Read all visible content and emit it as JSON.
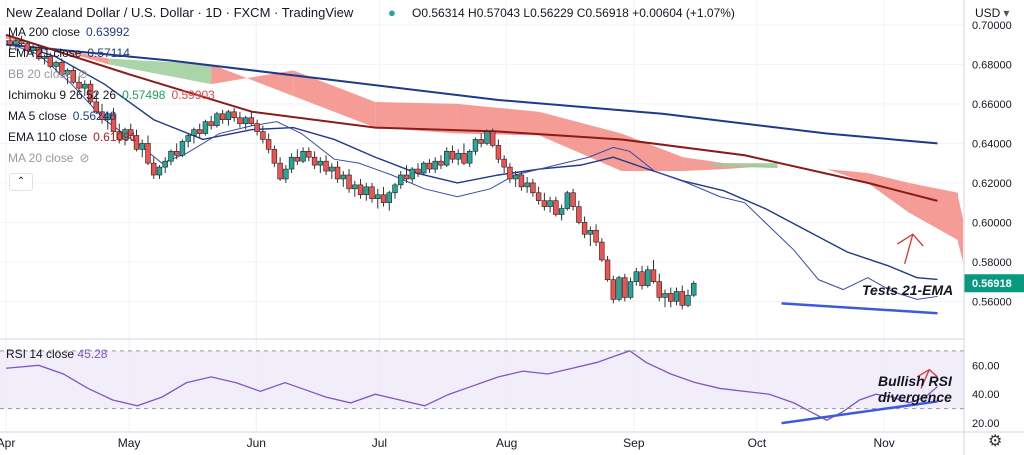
{
  "header": {
    "title": "New Zealand Dollar / U.S. Dollar · 1D · FXCM · TradingView",
    "ohlc": "O0.56314 H0.57043 L0.56229 C0.56918 +0.00604 (+1.07%)",
    "currency": "USD",
    "currency_suffix": "▾"
  },
  "indicators": [
    {
      "label": "MA 200 close",
      "value": "0.63992",
      "color": "#1e3a8a"
    },
    {
      "label": "EMA 21 close",
      "value": "0.57114",
      "color": "#1e3a8a"
    },
    {
      "label": "BB 20 close",
      "value": "",
      "color": "#9598a1"
    },
    {
      "label": "Ichimoku 9 26 52 26",
      "value": "0.57498",
      "value2": "0.59903",
      "color": "#22a15a",
      "color2": "#ef4444"
    },
    {
      "label": "MA 5 close",
      "value": "0.56246",
      "color": "#1e3a8a"
    },
    {
      "label": "EMA 110 close",
      "value": "0.61091",
      "color": "#b91c1c"
    },
    {
      "label": "MA 20 close",
      "value": "",
      "color": "#9598a1"
    }
  ],
  "rsi_label": {
    "label": "RSI 14 close",
    "value": "45.28"
  },
  "annotations": {
    "tests": "Tests 21-EMA",
    "rsi_line1": "Bullish RSI",
    "rsi_line2": "divergence"
  },
  "colors": {
    "up": "#26a69a",
    "down": "#ef5350",
    "ma200": "#1e3a8a",
    "ema110": "#8b1a1a",
    "ema21": "#1e3a8a",
    "rsi": "#7e57c2",
    "cloud_red": "#f28b82",
    "cloud_green": "#9ccc9a",
    "price_tag": "#089981"
  },
  "chart_data": {
    "type": "candlestick",
    "price_axis": {
      "ticks": [
        "0.70000",
        "0.68000",
        "0.66000",
        "0.64000",
        "0.62000",
        "0.60000",
        "0.58000",
        "0.56000"
      ],
      "ylim": [
        0.5455,
        0.7025
      ],
      "last_price": "0.56918"
    },
    "rsi_axis": {
      "ticks": [
        "60.00",
        "40.00",
        "20.00"
      ],
      "ylim": [
        18,
        72
      ],
      "bands": [
        30,
        70
      ]
    },
    "x_labels": [
      {
        "label": "Apr",
        "day": 0
      },
      {
        "label": "May",
        "day": 30
      },
      {
        "label": "Jun",
        "day": 61
      },
      {
        "label": "Jul",
        "day": 91
      },
      {
        "label": "Aug",
        "day": 122
      },
      {
        "label": "Sep",
        "day": 153
      },
      {
        "label": "Oct",
        "day": 183
      },
      {
        "label": "Nov",
        "day": 214
      }
    ],
    "x_domain_days": [
      0,
      232
    ],
    "candle_spacing_days": 1.4,
    "candles": [
      [
        0.692,
        0.695,
        0.688,
        0.69
      ],
      [
        0.69,
        0.693,
        0.687,
        0.692
      ],
      [
        0.692,
        0.6945,
        0.6895,
        0.6905
      ],
      [
        0.6905,
        0.692,
        0.686,
        0.687
      ],
      [
        0.687,
        0.69,
        0.684,
        0.6885
      ],
      [
        0.6885,
        0.69,
        0.682,
        0.683
      ],
      [
        0.683,
        0.685,
        0.68,
        0.684
      ],
      [
        0.684,
        0.686,
        0.678,
        0.679
      ],
      [
        0.679,
        0.682,
        0.676,
        0.681
      ],
      [
        0.681,
        0.683,
        0.674,
        0.675
      ],
      [
        0.675,
        0.678,
        0.67,
        0.677
      ],
      [
        0.677,
        0.679,
        0.67,
        0.671
      ],
      [
        0.671,
        0.674,
        0.666,
        0.668
      ],
      [
        0.668,
        0.672,
        0.664,
        0.67
      ],
      [
        0.67,
        0.672,
        0.66,
        0.661
      ],
      [
        0.661,
        0.666,
        0.655,
        0.656
      ],
      [
        0.656,
        0.66,
        0.65,
        0.652
      ],
      [
        0.652,
        0.656,
        0.647,
        0.655
      ],
      [
        0.655,
        0.658,
        0.645,
        0.646
      ],
      [
        0.646,
        0.65,
        0.64,
        0.642
      ],
      [
        0.642,
        0.648,
        0.639,
        0.647
      ],
      [
        0.647,
        0.65,
        0.642,
        0.644
      ],
      [
        0.644,
        0.647,
        0.636,
        0.637
      ],
      [
        0.637,
        0.642,
        0.633,
        0.64
      ],
      [
        0.64,
        0.644,
        0.629,
        0.63
      ],
      [
        0.63,
        0.633,
        0.622,
        0.624
      ],
      [
        0.624,
        0.629,
        0.622,
        0.628
      ],
      [
        0.628,
        0.633,
        0.625,
        0.631
      ],
      [
        0.631,
        0.637,
        0.629,
        0.636
      ],
      [
        0.636,
        0.64,
        0.632,
        0.634
      ],
      [
        0.634,
        0.642,
        0.633,
        0.641
      ],
      [
        0.641,
        0.645,
        0.638,
        0.644
      ],
      [
        0.644,
        0.648,
        0.64,
        0.647
      ],
      [
        0.647,
        0.65,
        0.643,
        0.645
      ],
      [
        0.645,
        0.652,
        0.644,
        0.651
      ],
      [
        0.651,
        0.654,
        0.647,
        0.649
      ],
      [
        0.649,
        0.656,
        0.648,
        0.655
      ],
      [
        0.655,
        0.657,
        0.65,
        0.652
      ],
      [
        0.652,
        0.657,
        0.649,
        0.656
      ],
      [
        0.656,
        0.658,
        0.651,
        0.653
      ],
      [
        0.653,
        0.656,
        0.648,
        0.65
      ],
      [
        0.65,
        0.654,
        0.647,
        0.653
      ],
      [
        0.653,
        0.656,
        0.649,
        0.65
      ],
      [
        0.65,
        0.652,
        0.644,
        0.646
      ],
      [
        0.646,
        0.649,
        0.64,
        0.642
      ],
      [
        0.642,
        0.645,
        0.635,
        0.637
      ],
      [
        0.637,
        0.639,
        0.628,
        0.63
      ],
      [
        0.63,
        0.633,
        0.621,
        0.622
      ],
      [
        0.622,
        0.629,
        0.62,
        0.627
      ],
      [
        0.627,
        0.635,
        0.625,
        0.633
      ],
      [
        0.633,
        0.637,
        0.629,
        0.631
      ],
      [
        0.631,
        0.638,
        0.63,
        0.636
      ],
      [
        0.636,
        0.638,
        0.631,
        0.633
      ],
      [
        0.633,
        0.636,
        0.627,
        0.629
      ],
      [
        0.629,
        0.633,
        0.625,
        0.631
      ],
      [
        0.631,
        0.634,
        0.624,
        0.626
      ],
      [
        0.626,
        0.63,
        0.622,
        0.628
      ],
      [
        0.628,
        0.631,
        0.62,
        0.622
      ],
      [
        0.622,
        0.626,
        0.618,
        0.624
      ],
      [
        0.624,
        0.627,
        0.615,
        0.617
      ],
      [
        0.617,
        0.621,
        0.613,
        0.619
      ],
      [
        0.619,
        0.622,
        0.612,
        0.614
      ],
      [
        0.614,
        0.62,
        0.611,
        0.618
      ],
      [
        0.618,
        0.62,
        0.61,
        0.612
      ],
      [
        0.612,
        0.617,
        0.607,
        0.614
      ],
      [
        0.614,
        0.618,
        0.608,
        0.61
      ],
      [
        0.61,
        0.616,
        0.606,
        0.615
      ],
      [
        0.615,
        0.62,
        0.612,
        0.619
      ],
      [
        0.619,
        0.626,
        0.617,
        0.624
      ],
      [
        0.624,
        0.629,
        0.62,
        0.622
      ],
      [
        0.622,
        0.628,
        0.62,
        0.627
      ],
      [
        0.627,
        0.63,
        0.623,
        0.625
      ],
      [
        0.625,
        0.631,
        0.624,
        0.63
      ],
      [
        0.63,
        0.632,
        0.625,
        0.627
      ],
      [
        0.627,
        0.633,
        0.625,
        0.631
      ],
      [
        0.631,
        0.634,
        0.627,
        0.629
      ],
      [
        0.629,
        0.638,
        0.628,
        0.636
      ],
      [
        0.636,
        0.639,
        0.63,
        0.632
      ],
      [
        0.632,
        0.637,
        0.629,
        0.635
      ],
      [
        0.635,
        0.64,
        0.629,
        0.63
      ],
      [
        0.63,
        0.637,
        0.628,
        0.636
      ],
      [
        0.636,
        0.643,
        0.634,
        0.642
      ],
      [
        0.642,
        0.645,
        0.638,
        0.64
      ],
      [
        0.64,
        0.647,
        0.639,
        0.646
      ],
      [
        0.646,
        0.6475,
        0.638,
        0.639
      ],
      [
        0.639,
        0.642,
        0.63,
        0.632
      ],
      [
        0.632,
        0.634,
        0.625,
        0.628
      ],
      [
        0.628,
        0.63,
        0.62,
        0.622
      ],
      [
        0.622,
        0.626,
        0.618,
        0.624
      ],
      [
        0.624,
        0.626,
        0.616,
        0.618
      ],
      [
        0.618,
        0.623,
        0.615,
        0.62
      ],
      [
        0.62,
        0.622,
        0.613,
        0.615
      ],
      [
        0.615,
        0.618,
        0.609,
        0.611
      ],
      [
        0.611,
        0.615,
        0.606,
        0.608
      ],
      [
        0.608,
        0.613,
        0.605,
        0.611
      ],
      [
        0.611,
        0.613,
        0.603,
        0.604
      ],
      [
        0.604,
        0.609,
        0.601,
        0.607
      ],
      [
        0.607,
        0.616,
        0.606,
        0.615
      ],
      [
        0.615,
        0.617,
        0.606,
        0.608
      ],
      [
        0.608,
        0.611,
        0.599,
        0.6
      ],
      [
        0.6,
        0.603,
        0.592,
        0.594
      ],
      [
        0.594,
        0.598,
        0.588,
        0.596
      ],
      [
        0.596,
        0.599,
        0.588,
        0.59
      ],
      [
        0.59,
        0.592,
        0.58,
        0.581
      ],
      [
        0.581,
        0.583,
        0.57,
        0.571
      ],
      [
        0.571,
        0.573,
        0.559,
        0.561
      ],
      [
        0.561,
        0.573,
        0.56,
        0.572
      ],
      [
        0.572,
        0.574,
        0.56,
        0.562
      ],
      [
        0.562,
        0.572,
        0.561,
        0.57
      ],
      [
        0.57,
        0.577,
        0.568,
        0.575
      ],
      [
        0.575,
        0.578,
        0.566,
        0.568
      ],
      [
        0.568,
        0.578,
        0.567,
        0.576
      ],
      [
        0.576,
        0.581,
        0.569,
        0.57
      ],
      [
        0.57,
        0.574,
        0.56,
        0.562
      ],
      [
        0.562,
        0.566,
        0.557,
        0.564
      ],
      [
        0.564,
        0.567,
        0.557,
        0.56
      ],
      [
        0.56,
        0.567,
        0.558,
        0.565
      ],
      [
        0.565,
        0.568,
        0.556,
        0.558
      ],
      [
        0.558,
        0.566,
        0.557,
        0.5631
      ],
      [
        0.56314,
        0.57043,
        0.56229,
        0.56918
      ]
    ],
    "ma200": [
      [
        0,
        0.69
      ],
      [
        40,
        0.682
      ],
      [
        80,
        0.672
      ],
      [
        120,
        0.662
      ],
      [
        160,
        0.655
      ],
      [
        200,
        0.645
      ],
      [
        227,
        0.64
      ]
    ],
    "ema110": [
      [
        0,
        0.695
      ],
      [
        30,
        0.675
      ],
      [
        60,
        0.656
      ],
      [
        90,
        0.648
      ],
      [
        120,
        0.646
      ],
      [
        150,
        0.642
      ],
      [
        180,
        0.634
      ],
      [
        210,
        0.62
      ],
      [
        227,
        0.6109
      ]
    ],
    "ema21": [
      [
        0,
        0.692
      ],
      [
        12,
        0.684
      ],
      [
        24,
        0.67
      ],
      [
        36,
        0.652
      ],
      [
        48,
        0.642
      ],
      [
        60,
        0.647
      ],
      [
        70,
        0.648
      ],
      [
        80,
        0.642
      ],
      [
        90,
        0.633
      ],
      [
        100,
        0.625
      ],
      [
        110,
        0.62
      ],
      [
        120,
        0.624
      ],
      [
        130,
        0.627
      ],
      [
        140,
        0.629
      ],
      [
        148,
        0.633
      ],
      [
        155,
        0.628
      ],
      [
        165,
        0.621
      ],
      [
        175,
        0.616
      ],
      [
        185,
        0.607
      ],
      [
        195,
        0.596
      ],
      [
        205,
        0.585
      ],
      [
        215,
        0.578
      ],
      [
        222,
        0.572
      ],
      [
        227,
        0.5711
      ]
    ],
    "ma5": [
      [
        0,
        0.691
      ],
      [
        8,
        0.685
      ],
      [
        16,
        0.67
      ],
      [
        24,
        0.652
      ],
      [
        32,
        0.64
      ],
      [
        38,
        0.63
      ],
      [
        44,
        0.635
      ],
      [
        52,
        0.645
      ],
      [
        60,
        0.649
      ],
      [
        66,
        0.651
      ],
      [
        72,
        0.645
      ],
      [
        80,
        0.632
      ],
      [
        86,
        0.63
      ],
      [
        94,
        0.624
      ],
      [
        102,
        0.617
      ],
      [
        110,
        0.613
      ],
      [
        118,
        0.617
      ],
      [
        124,
        0.624
      ],
      [
        130,
        0.627
      ],
      [
        136,
        0.63
      ],
      [
        142,
        0.633
      ],
      [
        148,
        0.638
      ],
      [
        152,
        0.636
      ],
      [
        158,
        0.626
      ],
      [
        166,
        0.62
      ],
      [
        174,
        0.613
      ],
      [
        180,
        0.61
      ],
      [
        186,
        0.598
      ],
      [
        192,
        0.586
      ],
      [
        198,
        0.571
      ],
      [
        204,
        0.566
      ],
      [
        210,
        0.572
      ],
      [
        216,
        0.565
      ],
      [
        222,
        0.561
      ],
      [
        227,
        0.5625
      ]
    ],
    "cloud": [
      [
        0,
        0.695,
        0.693
      ],
      [
        25,
        0.68,
        0.683
      ],
      [
        50,
        0.67,
        0.68
      ],
      [
        70,
        0.677,
        0.664
      ],
      [
        90,
        0.661,
        0.648
      ],
      [
        110,
        0.66,
        0.645
      ],
      [
        130,
        0.656,
        0.644
      ],
      [
        150,
        0.645,
        0.626
      ],
      [
        165,
        0.633,
        0.626
      ],
      [
        175,
        0.63,
        0.627
      ],
      [
        182,
        0.629,
        0.628
      ],
      [
        190,
        0.628,
        0.628
      ],
      [
        200,
        0.627,
        0.627
      ],
      [
        210,
        0.625,
        0.62
      ],
      [
        220,
        0.62,
        0.605
      ],
      [
        232,
        0.615,
        0.591
      ]
    ],
    "cloud_right": [
      [
        232,
        0.613,
        0.59
      ],
      [
        240,
        0.602,
        0.58
      ],
      [
        250,
        0.602,
        0.577
      ],
      [
        256,
        0.602,
        0.576
      ]
    ],
    "rsi": [
      [
        0,
        58
      ],
      [
        8,
        60
      ],
      [
        14,
        54
      ],
      [
        20,
        44
      ],
      [
        26,
        36
      ],
      [
        32,
        32
      ],
      [
        38,
        38
      ],
      [
        44,
        48
      ],
      [
        50,
        52
      ],
      [
        56,
        48
      ],
      [
        62,
        42
      ],
      [
        68,
        48
      ],
      [
        72,
        44
      ],
      [
        78,
        38
      ],
      [
        84,
        34
      ],
      [
        90,
        40
      ],
      [
        96,
        36
      ],
      [
        102,
        32
      ],
      [
        108,
        40
      ],
      [
        114,
        46
      ],
      [
        120,
        52
      ],
      [
        126,
        56
      ],
      [
        132,
        54
      ],
      [
        138,
        58
      ],
      [
        144,
        62
      ],
      [
        148,
        66
      ],
      [
        152,
        70
      ],
      [
        156,
        62
      ],
      [
        162,
        54
      ],
      [
        168,
        48
      ],
      [
        174,
        44
      ],
      [
        180,
        42
      ],
      [
        186,
        40
      ],
      [
        192,
        34
      ],
      [
        196,
        28
      ],
      [
        200,
        22
      ],
      [
        204,
        28
      ],
      [
        208,
        36
      ],
      [
        212,
        40
      ],
      [
        216,
        38
      ],
      [
        220,
        34
      ],
      [
        224,
        38
      ],
      [
        227,
        45.28
      ]
    ],
    "divergence_price": [
      [
        189,
        0.559
      ],
      [
        227,
        0.554
      ]
    ],
    "divergence_rsi": [
      [
        189,
        20
      ],
      [
        227,
        35
      ]
    ]
  }
}
